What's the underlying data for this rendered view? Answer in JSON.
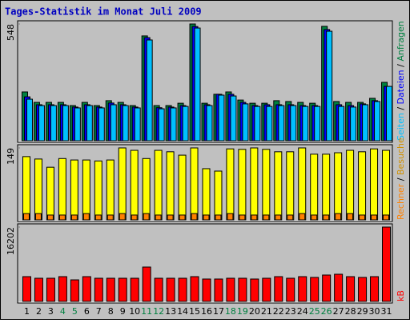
{
  "chart_data": {
    "type": "bar",
    "title": "Tages-Statistik im Monat Juli 2009",
    "categories": [
      "1",
      "2",
      "3",
      "4",
      "5",
      "6",
      "7",
      "8",
      "9",
      "10",
      "11",
      "12",
      "13",
      "14",
      "15",
      "16",
      "17",
      "18",
      "19",
      "20",
      "21",
      "22",
      "23",
      "24",
      "25",
      "26",
      "27",
      "28",
      "29",
      "30",
      "31"
    ],
    "category_label_colors": [
      "#000000",
      "#000000",
      "#000000",
      "#008040",
      "#008040",
      "#000000",
      "#000000",
      "#000000",
      "#000000",
      "#000000",
      "#008040",
      "#008040",
      "#000000",
      "#000000",
      "#000000",
      "#000000",
      "#000000",
      "#008040",
      "#008040",
      "#000000",
      "#000000",
      "#000000",
      "#000000",
      "#000000",
      "#008040",
      "#008040",
      "#000000",
      "#000000",
      "#000000",
      "#000000",
      "#000000"
    ],
    "legend_separator": " / ",
    "panels": [
      {
        "ylim": [
          0,
          548
        ],
        "yticks": [
          548
        ],
        "series": [
          {
            "name": "Anfragen",
            "color": "#008040",
            "values": [
              229,
              180,
              180,
              180,
              165,
              180,
              165,
              188,
              180,
              165,
              492,
              165,
              165,
              176,
              548,
              176,
              218,
              229,
              191,
              176,
              176,
              188,
              184,
              180,
              176,
              537,
              184,
              180,
              180,
              199,
              274
            ]
          },
          {
            "name": "Dateien",
            "color": "#0000ff",
            "values": [
              206,
              169,
              169,
              169,
              158,
              169,
              158,
              177,
              169,
              158,
              484,
              155,
              158,
              165,
              536,
              169,
              218,
              218,
              180,
              165,
              169,
              169,
              169,
              165,
              165,
              522,
              169,
              165,
              173,
              188,
              255
            ]
          },
          {
            "name": "Seiten",
            "color": "#00c0ff",
            "values": [
              195,
              165,
              165,
              165,
              154,
              165,
              154,
              169,
              165,
              154,
              473,
              150,
              154,
              161,
              529,
              165,
              214,
              210,
              173,
              161,
              161,
              165,
              165,
              161,
              161,
              514,
              161,
              158,
              169,
              184,
              255
            ]
          }
        ]
      },
      {
        "ylim": [
          0,
          149
        ],
        "yticks": [
          149
        ],
        "series": [
          {
            "name": "Besuche",
            "color": "#ffff00",
            "legend_color": "#d09000",
            "values": [
              131,
              126,
              109,
              127,
              124,
              124,
              122,
              124,
              149,
              144,
              127,
              144,
              141,
              134,
              149,
              106,
              101,
              147,
              146,
              149,
              146,
              141,
              141,
              149,
              136,
              136,
              139,
              144,
              141,
              147,
              144
            ]
          },
          {
            "name": "Rechner",
            "color": "#ff8000",
            "values": [
              13,
              13,
              10,
              10,
              10,
              13,
              10,
              10,
              13,
              10,
              13,
              10,
              10,
              10,
              13,
              10,
              10,
              13,
              10,
              10,
              10,
              10,
              10,
              13,
              10,
              10,
              13,
              13,
              10,
              10,
              10
            ]
          }
        ]
      },
      {
        "ylim": [
          0,
          16202
        ],
        "yticks": [
          16202
        ],
        "series": [
          {
            "name": "kB",
            "color": "#ff0000",
            "values": [
              5400,
              5050,
              5050,
              5400,
              4700,
              5400,
              5050,
              5050,
              5050,
              5050,
              7490,
              5050,
              5050,
              5050,
              5400,
              4880,
              4880,
              5050,
              5050,
              4880,
              5050,
              5400,
              5050,
              5400,
              5230,
              5750,
              5920,
              5400,
              5230,
              5400,
              16202
            ]
          }
        ]
      }
    ]
  }
}
